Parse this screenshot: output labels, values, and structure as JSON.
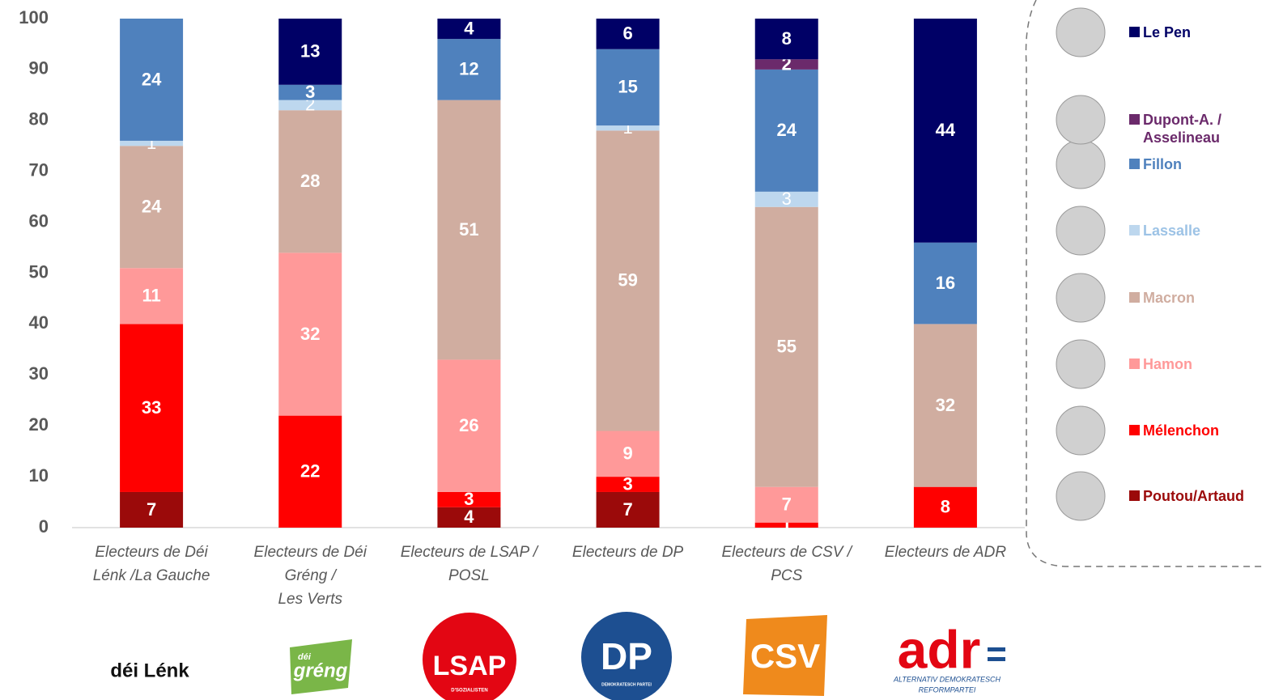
{
  "chart_data": {
    "type": "stacked_bar",
    "categories": [
      "Electeurs de Déi\nLénk /La Gauche",
      "Electeurs de Déi\nGréng /\nLes Verts",
      "Electeurs de LSAP /\nPOSL",
      "Electeurs de DP",
      "Electeurs de CSV /\nPCS",
      "Electeurs de ADR"
    ],
    "series": [
      {
        "name": "Poutou/Artaud",
        "color": "#9b0a0a",
        "values": [
          7,
          null,
          4,
          7,
          null,
          null
        ]
      },
      {
        "name": "Mélenchon",
        "color": "#ff0000",
        "values": [
          33,
          22,
          3,
          3,
          1,
          8
        ]
      },
      {
        "name": "Hamon",
        "color": "#ff9999",
        "values": [
          11,
          32,
          26,
          9,
          7,
          null
        ]
      },
      {
        "name": "Macron",
        "color": "#d0ada0",
        "values": [
          24,
          28,
          51,
          59,
          55,
          32
        ]
      },
      {
        "name": "Lassalle",
        "color": "#bdd7ee",
        "values": [
          1,
          2,
          null,
          1,
          3,
          null
        ]
      },
      {
        "name": "Fillon",
        "color": "#4f81bd",
        "values": [
          24,
          3,
          12,
          15,
          24,
          16
        ]
      },
      {
        "name": "Dupont-A. /\nAsselineau",
        "color": "#6b2a6b",
        "values": [
          null,
          null,
          null,
          null,
          2,
          null
        ]
      },
      {
        "name": "Le Pen",
        "color": "#000066",
        "values": [
          null,
          13,
          4,
          6,
          8,
          44
        ]
      }
    ],
    "ylim": [
      0,
      100
    ],
    "yticks": [
      0,
      10,
      20,
      30,
      40,
      50,
      60,
      70,
      80,
      90,
      100
    ],
    "grid": false,
    "legend": "right"
  },
  "logos": {
    "lenk": "déi Lénk",
    "greng_small": "déi",
    "greng": "gréng",
    "lsap": "LSAP",
    "lsap_sub": "D'SOZIALISTEN",
    "dp": "DP",
    "dp_sub": "DEMOKRATESCH PARTEI",
    "csv": "CSV",
    "adr": "adr",
    "adr_sub1": "ALTERNATIV DEMOKRATESCH",
    "adr_sub2": "REFORMPARTEI"
  }
}
